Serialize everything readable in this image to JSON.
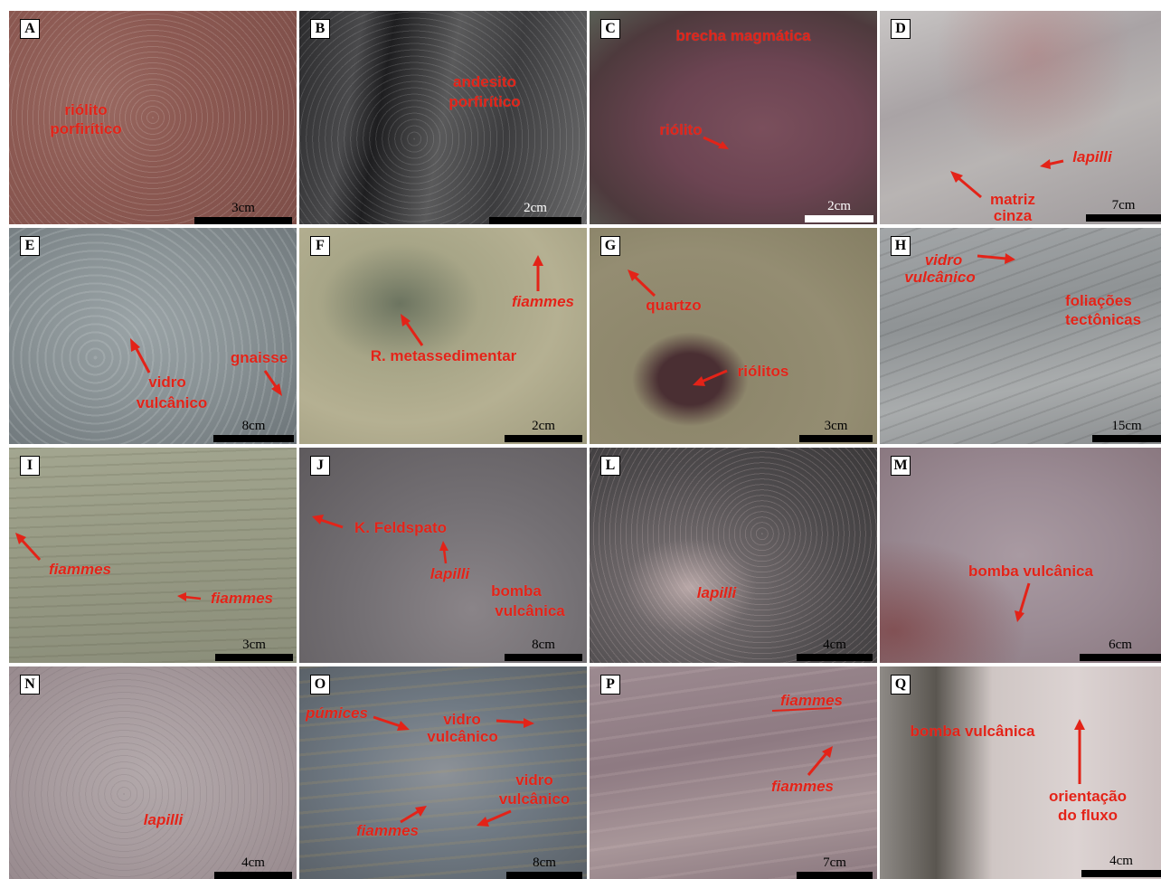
{
  "panels": {
    "A": {
      "letter": "A",
      "labels": [
        "riólito",
        "porfirítico"
      ],
      "scale": "3cm"
    },
    "B": {
      "letter": "B",
      "labels": [
        "andesito",
        "porfirítico"
      ],
      "scale": "2cm"
    },
    "C": {
      "letter": "C",
      "labels": [
        "brecha magmática",
        "riólito"
      ],
      "scale": "2cm"
    },
    "D": {
      "letter": "D",
      "labels": [
        "lapilli",
        "matriz",
        "cinza"
      ],
      "scale": "7cm"
    },
    "E": {
      "letter": "E",
      "labels": [
        "vidro",
        "vulcânico",
        "gnaisse"
      ],
      "scale": "8cm"
    },
    "F": {
      "letter": "F",
      "labels": [
        "fiammes",
        "R. metassedimentar"
      ],
      "scale": "2cm"
    },
    "G": {
      "letter": "G",
      "labels": [
        "quartzo",
        "riólitos"
      ],
      "scale": "3cm"
    },
    "H": {
      "letter": "H",
      "labels": [
        "vidro",
        "vulcânico",
        "foliações",
        "tectônicas"
      ],
      "scale": "15cm"
    },
    "I": {
      "letter": "I",
      "labels": [
        "fiammes",
        "fiammes"
      ],
      "scale": "3cm"
    },
    "J": {
      "letter": "J",
      "labels": [
        "K. Feldspato",
        "lapilli",
        "bomba",
        "vulcânica"
      ],
      "scale": "8cm"
    },
    "L": {
      "letter": "L",
      "labels": [
        "lapilli"
      ],
      "scale": "4cm"
    },
    "M": {
      "letter": "M",
      "labels": [
        "bomba vulcânica"
      ],
      "scale": "6cm"
    },
    "N": {
      "letter": "N",
      "labels": [
        "lapilli"
      ],
      "scale": "4cm"
    },
    "O": {
      "letter": "O",
      "labels": [
        "púmices",
        "vidro",
        "vulcânico",
        "vidro",
        "vulcânico",
        "fiammes"
      ],
      "scale": "8cm"
    },
    "P": {
      "letter": "P",
      "labels": [
        "fiammes",
        "fiammes"
      ],
      "scale": "7cm"
    },
    "Q": {
      "letter": "Q",
      "labels": [
        "bomba vulcânica",
        "orientação",
        "do fluxo"
      ],
      "scale": "4cm"
    }
  },
  "colors": {
    "label": "#e32318",
    "arrow": "#e32318",
    "frame": "#000000"
  }
}
